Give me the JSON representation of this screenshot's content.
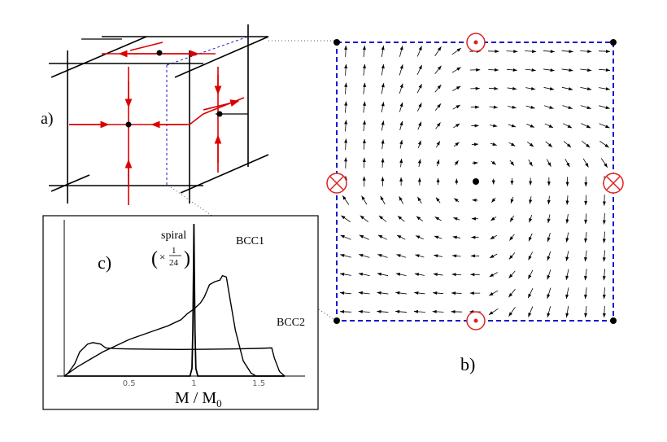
{
  "panels": {
    "a": {
      "label": "a)"
    },
    "b": {
      "label": "b)"
    },
    "c": {
      "label": "c)",
      "xlabel_main": "M / M",
      "xlabel_sub": "0",
      "x_ticks": [
        "0.5",
        "1",
        "1.5"
      ],
      "curve_labels": {
        "spiral": "spiral",
        "scale_prefix": "×",
        "scale_num": "1",
        "scale_den": "24",
        "bcc1": "BCC1",
        "bcc2": "BCC2"
      }
    }
  },
  "colors": {
    "lattice": "#000000",
    "domain_wall": "#dd0000",
    "dashed_cell": "#1a1acc",
    "vector": "#000000"
  },
  "icons": {
    "flux_out": "circle-dot-icon",
    "flux_in": "circle-cross-icon"
  },
  "chart_data": {
    "type": "line",
    "title": "",
    "xlabel": "M / M0",
    "ylabel": "",
    "xlim": [
      -0.05,
      1.85
    ],
    "x_ticks": [
      0.5,
      1,
      1.5
    ],
    "series": [
      {
        "name": "spiral",
        "x": [
          0.0,
          0.97,
          0.985,
          0.992,
          0.997,
          1.0,
          1.003,
          1.008,
          1.015,
          1.03,
          1.7
        ],
        "y": [
          0.0,
          0.0,
          0.05,
          0.3,
          0.7,
          1.0,
          0.7,
          0.3,
          0.05,
          0.0,
          0.0
        ]
      },
      {
        "name": "BCC1",
        "x": [
          0.0,
          0.05,
          0.1,
          0.2,
          0.3,
          0.4,
          0.5,
          0.6,
          0.7,
          0.8,
          0.9,
          0.95,
          1.0,
          1.05,
          1.08,
          1.12,
          1.16,
          1.2,
          1.22,
          1.25,
          1.28,
          1.32,
          1.38,
          1.44,
          1.48,
          1.5,
          1.7
        ],
        "y": [
          0.0,
          0.03,
          0.06,
          0.11,
          0.16,
          0.2,
          0.24,
          0.27,
          0.3,
          0.33,
          0.37,
          0.41,
          0.44,
          0.48,
          0.52,
          0.6,
          0.62,
          0.63,
          0.66,
          0.65,
          0.5,
          0.3,
          0.1,
          0.02,
          0.0,
          0.0,
          0.0
        ]
      },
      {
        "name": "BCC2",
        "x": [
          0.0,
          0.03,
          0.08,
          0.12,
          0.18,
          0.22,
          0.28,
          0.32,
          0.4,
          0.5,
          0.7,
          0.9,
          1.1,
          1.3,
          1.5,
          1.6,
          1.62,
          1.66,
          1.7
        ],
        "y": [
          0.0,
          0.02,
          0.08,
          0.16,
          0.21,
          0.22,
          0.21,
          0.185,
          0.18,
          0.178,
          0.176,
          0.175,
          0.176,
          0.178,
          0.182,
          0.185,
          0.12,
          0.03,
          0.0
        ]
      }
    ]
  }
}
